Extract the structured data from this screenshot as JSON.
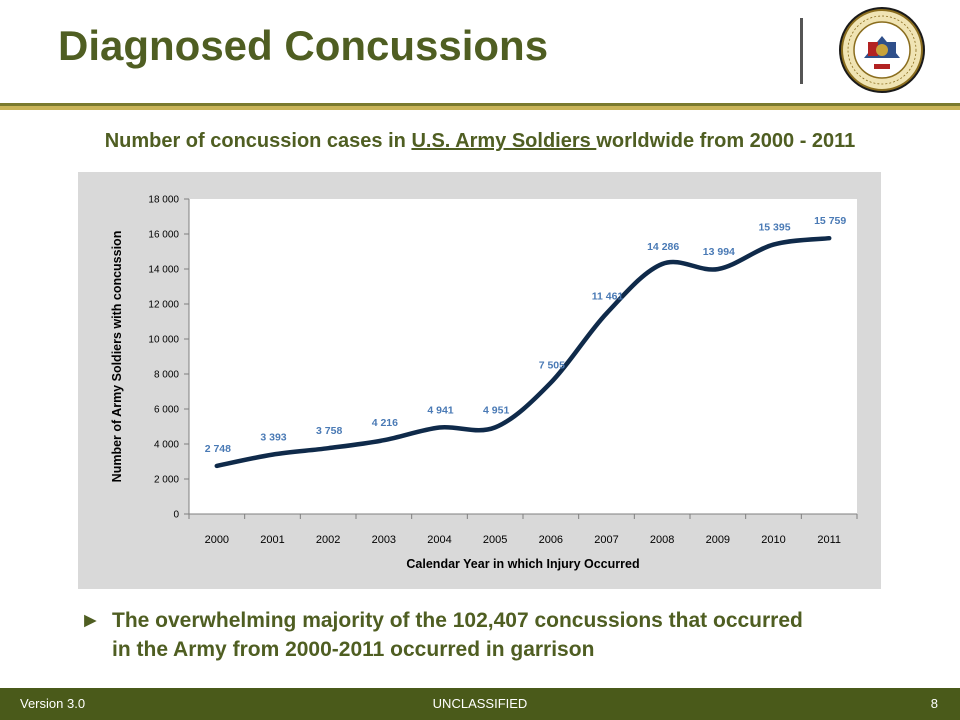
{
  "slide": {
    "title": "Diagnosed Concussions",
    "subtitle_pre": "Number of concussion cases in ",
    "subtitle_link": "U.S. Army Soldiers ",
    "subtitle_post": "worldwide from 2000 - 2011",
    "bullet_arrow": "►",
    "bullet_line1": "The overwhelming majority of the 102,407 concussions that occurred",
    "bullet_line2": "in the Army from 2000-2011 occurred in garrison",
    "seal_icon": "department-of-the-army-seal"
  },
  "footer": {
    "version": "Version 3.0",
    "classification": "UNCLASSIFIED",
    "page": "8"
  },
  "colors": {
    "title": "#4f5e22",
    "line": "#0f2a4a",
    "labels": "#4a7ab5",
    "panel": "#d9d9d9",
    "footer": "#4a5a1a"
  },
  "chart_data": {
    "type": "line",
    "categories": [
      "2000",
      "2001",
      "2002",
      "2003",
      "2004",
      "2005",
      "2006",
      "2007",
      "2008",
      "2009",
      "2010",
      "2011"
    ],
    "values": [
      2748,
      3393,
      3758,
      4216,
      4941,
      4951,
      7505,
      11461,
      14286,
      13994,
      15395,
      15759
    ],
    "data_labels": [
      "2 748",
      "3 393",
      "3 758",
      "4 216",
      "4 941",
      "4 951",
      "7 505",
      "11 461",
      "14 286",
      "13 994",
      "15 395",
      "15 759"
    ],
    "xlabel": "Calendar Year in which Injury Occurred",
    "ylabel": "Number of Army Soldiers with concussion",
    "ylim": [
      0,
      18000
    ],
    "yticks": [
      0,
      2000,
      4000,
      6000,
      8000,
      10000,
      12000,
      14000,
      16000,
      18000
    ],
    "ytick_labels": [
      "0",
      "2 000",
      "4 000",
      "6 000",
      "8 000",
      "10 000",
      "12 000",
      "14 000",
      "16 000",
      "18 000"
    ],
    "grid": false,
    "legend": "none",
    "smooth": true
  }
}
